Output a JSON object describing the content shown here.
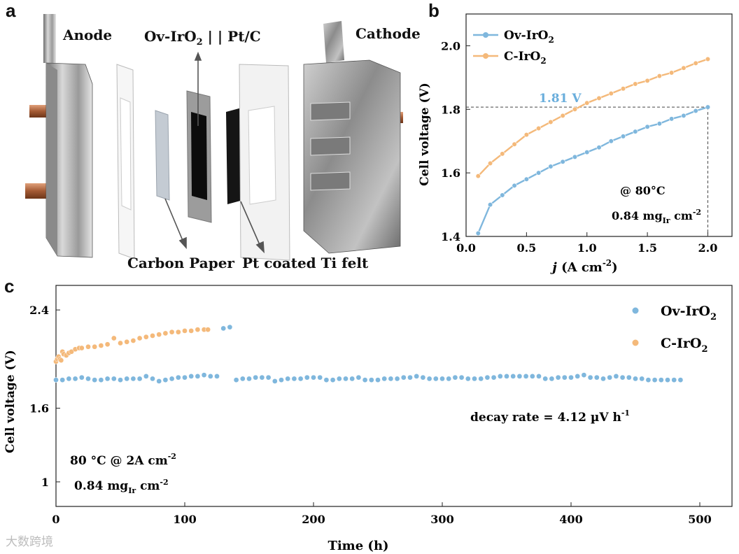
{
  "panel_a": {
    "letter": "a",
    "labels": {
      "anode": "Anode",
      "cathode": "Cathode",
      "mea_main": "Ov-IrO",
      "mea_sub": "2",
      "mea_rest": " | | Pt/C",
      "carbon_paper": "Carbon Paper",
      "ti_felt": "Pt coated Ti felt"
    }
  },
  "panel_b": {
    "letter": "b",
    "annotation": "1.81 V",
    "condition_temp": "@ 80°C",
    "condition_load_main": "0.84 mg",
    "condition_load_sub": "Ir",
    "condition_load_rest": " cm",
    "condition_load_sup": "-2"
  },
  "panel_c": {
    "letter": "c",
    "decay_main": "decay rate = 4.12 µV h",
    "decay_sup": "-1",
    "cond1_main": "80 °C @ 2A cm",
    "cond1_sup": "-2",
    "cond2_main": "0.84 mg",
    "cond2_sub": "Ir",
    "cond2_rest": " cm",
    "cond2_sup": "-2"
  },
  "watermark": "大数跨境",
  "colors": {
    "blue": "#7fb7dd",
    "orange": "#f4b97a",
    "annotation_blue": "#6aaedc"
  },
  "chart_data": [
    {
      "type": "line",
      "title": "",
      "xlabel_main": "j",
      "xlabel_rest": " (A cm",
      "xlabel_sup": "-2",
      "xlabel_end": ")",
      "ylabel": "Cell voltage (V)",
      "xlim": [
        0.0,
        2.2
      ],
      "ylim": [
        1.4,
        2.1
      ],
      "xticks": [
        "0.0",
        "0.5",
        "1.0",
        "1.5",
        "2.0"
      ],
      "yticks": [
        "1.4",
        "1.6",
        "1.8",
        "2.0"
      ],
      "legend": "top-left",
      "series": [
        {
          "name_main": "Ov-IrO",
          "name_sub": "2",
          "color": "#7fb7dd",
          "x": [
            0.1,
            0.2,
            0.3,
            0.4,
            0.5,
            0.6,
            0.7,
            0.8,
            0.9,
            1.0,
            1.1,
            1.2,
            1.3,
            1.4,
            1.5,
            1.6,
            1.7,
            1.8,
            1.9,
            2.0
          ],
          "y": [
            1.41,
            1.5,
            1.53,
            1.56,
            1.58,
            1.6,
            1.62,
            1.635,
            1.65,
            1.665,
            1.68,
            1.7,
            1.715,
            1.73,
            1.745,
            1.755,
            1.77,
            1.78,
            1.795,
            1.807
          ]
        },
        {
          "name_main": "C-IrO",
          "name_sub": "2",
          "color": "#f4b97a",
          "x": [
            0.1,
            0.2,
            0.3,
            0.4,
            0.5,
            0.6,
            0.7,
            0.8,
            0.9,
            1.0,
            1.1,
            1.2,
            1.3,
            1.4,
            1.5,
            1.6,
            1.7,
            1.8,
            1.9,
            2.0
          ],
          "y": [
            1.59,
            1.63,
            1.66,
            1.69,
            1.72,
            1.74,
            1.76,
            1.78,
            1.8,
            1.82,
            1.835,
            1.85,
            1.865,
            1.88,
            1.89,
            1.905,
            1.915,
            1.93,
            1.945,
            1.958
          ]
        }
      ],
      "reference": {
        "x": 2.0,
        "y": 1.807
      }
    },
    {
      "type": "scatter",
      "title": "",
      "xlabel": "Time (h)",
      "ylabel": "Cell voltage (V)",
      "xlim": [
        0,
        525
      ],
      "ylim": [
        0.8,
        2.6
      ],
      "xticks": [
        "0",
        "100",
        "200",
        "300",
        "400",
        "500"
      ],
      "yticks": [
        "1",
        "1.6",
        "2.4"
      ],
      "ytick_values": [
        1.0,
        1.6,
        2.4
      ],
      "legend": "top-right",
      "series": [
        {
          "name_main": "Ov-IrO",
          "name_sub": "2",
          "color": "#7fb7dd",
          "x": [
            0,
            5,
            10,
            15,
            20,
            25,
            30,
            35,
            40,
            45,
            50,
            55,
            60,
            65,
            70,
            75,
            80,
            85,
            90,
            95,
            100,
            105,
            110,
            115,
            120,
            125,
            130,
            135,
            140,
            145,
            150,
            155,
            160,
            165,
            170,
            175,
            180,
            185,
            190,
            195,
            200,
            205,
            210,
            215,
            220,
            225,
            230,
            235,
            240,
            245,
            250,
            255,
            260,
            265,
            270,
            275,
            280,
            285,
            290,
            295,
            300,
            305,
            310,
            315,
            320,
            325,
            330,
            335,
            340,
            345,
            350,
            355,
            360,
            365,
            370,
            375,
            380,
            385,
            390,
            395,
            400,
            405,
            410,
            415,
            420,
            425,
            430,
            435,
            440,
            445,
            450,
            455,
            460,
            465,
            470,
            475,
            480,
            485
          ],
          "y": [
            1.83,
            1.83,
            1.84,
            1.84,
            1.85,
            1.84,
            1.83,
            1.83,
            1.84,
            1.84,
            1.83,
            1.84,
            1.84,
            1.84,
            1.86,
            1.84,
            1.82,
            1.83,
            1.84,
            1.85,
            1.85,
            1.86,
            1.86,
            1.87,
            1.86,
            1.86,
            2.25,
            2.26,
            1.83,
            1.84,
            1.84,
            1.85,
            1.85,
            1.85,
            1.82,
            1.83,
            1.84,
            1.84,
            1.84,
            1.85,
            1.85,
            1.85,
            1.83,
            1.83,
            1.84,
            1.84,
            1.84,
            1.85,
            1.83,
            1.83,
            1.83,
            1.84,
            1.84,
            1.84,
            1.85,
            1.85,
            1.86,
            1.85,
            1.84,
            1.84,
            1.84,
            1.84,
            1.85,
            1.85,
            1.84,
            1.84,
            1.84,
            1.85,
            1.85,
            1.86,
            1.86,
            1.86,
            1.86,
            1.86,
            1.86,
            1.86,
            1.84,
            1.84,
            1.85,
            1.85,
            1.85,
            1.86,
            1.87,
            1.85,
            1.85,
            1.84,
            1.85,
            1.86,
            1.85,
            1.85,
            1.84,
            1.84,
            1.83,
            1.83,
            1.83,
            1.83,
            1.83,
            1.83
          ]
        },
        {
          "name_main": "C-IrO",
          "name_sub": "2",
          "color": "#f4b97a",
          "x": [
            0,
            1,
            2,
            3,
            4,
            5,
            6,
            8,
            10,
            12,
            15,
            18,
            20,
            25,
            30,
            35,
            40,
            45,
            50,
            55,
            60,
            65,
            70,
            75,
            80,
            85,
            90,
            95,
            100,
            105,
            110,
            115,
            118
          ],
          "y": [
            1.98,
            2.0,
            2.02,
            2.0,
            1.99,
            2.06,
            2.04,
            2.03,
            2.05,
            2.06,
            2.08,
            2.09,
            2.09,
            2.1,
            2.1,
            2.11,
            2.12,
            2.17,
            2.13,
            2.14,
            2.15,
            2.17,
            2.18,
            2.19,
            2.2,
            2.21,
            2.22,
            2.22,
            2.23,
            2.23,
            2.24,
            2.24,
            2.24
          ]
        }
      ]
    }
  ]
}
